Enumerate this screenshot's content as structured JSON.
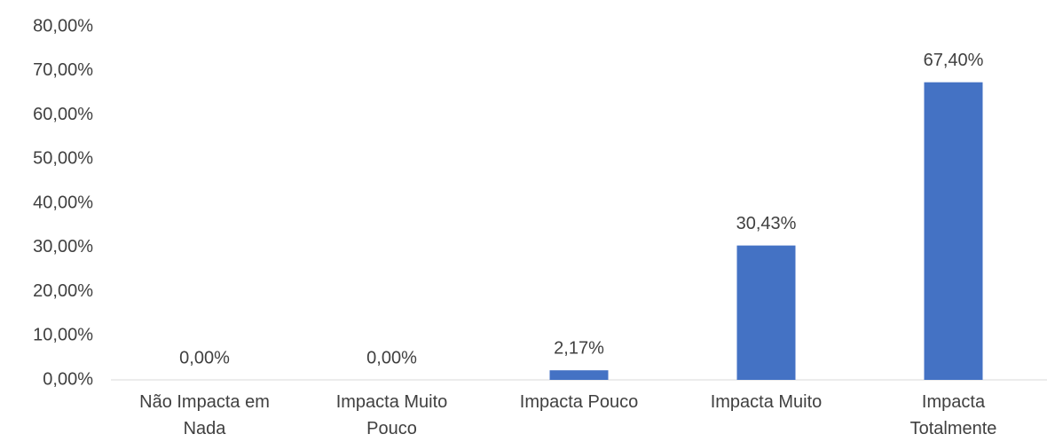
{
  "chart_data": {
    "type": "bar",
    "categories": [
      "Não Impacta em\nNada",
      "Impacta Muito\nPouco",
      "Impacta Pouco",
      "Impacta Muito",
      "Impacta\nTotalmente"
    ],
    "values": [
      0,
      0,
      2.17,
      30.43,
      67.4
    ],
    "value_labels": [
      "0,00%",
      "0,00%",
      "2,17%",
      "30,43%",
      "67,40%"
    ],
    "color": "#4472c4",
    "ylim": [
      0,
      80
    ],
    "yticks": [
      {
        "value": 0,
        "label": "0,00%"
      },
      {
        "value": 10,
        "label": "10,00%"
      },
      {
        "value": 20,
        "label": "20,00%"
      },
      {
        "value": 30,
        "label": "30,00%"
      },
      {
        "value": 40,
        "label": "40,00%"
      },
      {
        "value": 50,
        "label": "50,00%"
      },
      {
        "value": 60,
        "label": "60,00%"
      },
      {
        "value": 70,
        "label": "70,00%"
      },
      {
        "value": 80,
        "label": "80,00%"
      }
    ],
    "grid": false
  }
}
